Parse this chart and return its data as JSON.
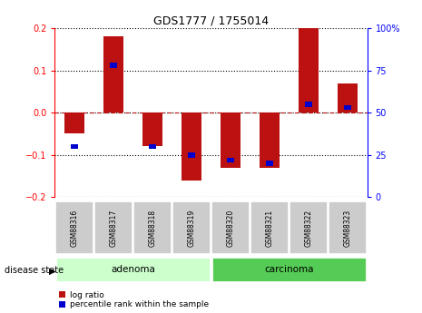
{
  "title": "GDS1777 / 1755014",
  "samples": [
    "GSM88316",
    "GSM88317",
    "GSM88318",
    "GSM88319",
    "GSM88320",
    "GSM88321",
    "GSM88322",
    "GSM88323"
  ],
  "log_ratio": [
    -0.05,
    0.18,
    -0.08,
    -0.16,
    -0.13,
    -0.13,
    0.2,
    0.07
  ],
  "percentile": [
    30,
    78,
    30,
    25,
    22,
    20,
    55,
    53
  ],
  "ylim_left": [
    -0.2,
    0.2
  ],
  "ylim_right": [
    0,
    100
  ],
  "yticks_left": [
    -0.2,
    -0.1,
    0.0,
    0.1,
    0.2
  ],
  "yticks_right": [
    0,
    25,
    50,
    75,
    100
  ],
  "bar_color_red": "#bb1111",
  "bar_color_blue": "#0000cc",
  "adenoma_color": "#ccffcc",
  "carcinoma_color": "#55cc55",
  "label_bg_color": "#cccccc",
  "groups": [
    {
      "name": "adenoma",
      "indices": [
        0,
        1,
        2,
        3
      ],
      "color": "#ccffcc"
    },
    {
      "name": "carcinoma",
      "indices": [
        4,
        5,
        6,
        7
      ],
      "color": "#55cc55"
    }
  ],
  "legend_labels": [
    "log ratio",
    "percentile rank within the sample"
  ],
  "disease_state_label": "disease state"
}
